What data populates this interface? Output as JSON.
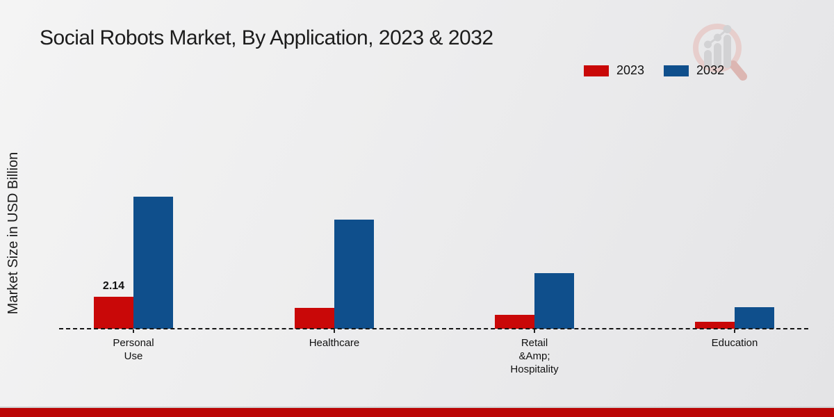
{
  "title": "Social Robots Market, By Application, 2023 & 2032",
  "y_axis_label": "Market Size in USD Billion",
  "legend": [
    {
      "label": "2023",
      "color": "#c90808"
    },
    {
      "label": "2032",
      "color": "#0f4f8c"
    }
  ],
  "chart_data": {
    "type": "bar",
    "title": "Social Robots Market, By Application, 2023 & 2032",
    "xlabel": "",
    "ylabel": "Market Size in USD Billion",
    "categories": [
      "Personal Use",
      "Healthcare",
      "Retail &Amp; Hospitality",
      "Education"
    ],
    "category_lines": [
      [
        "Personal",
        "Use"
      ],
      [
        "Healthcare"
      ],
      [
        "Retail",
        "&Amp;",
        "Hospitality"
      ],
      [
        "Education"
      ]
    ],
    "series": [
      {
        "name": "2023",
        "color": "#c90808",
        "values": [
          2.14,
          1.4,
          0.93,
          0.48
        ],
        "value_labels": [
          "2.14",
          "",
          "",
          ""
        ]
      },
      {
        "name": "2032",
        "color": "#0f4f8c",
        "values": [
          8.84,
          7.28,
          3.7,
          1.42
        ],
        "value_labels": [
          "",
          "",
          "",
          ""
        ]
      }
    ],
    "ylim": [
      0,
      10
    ],
    "grid": false,
    "legend_position": "top-right",
    "x_axis_style": "dashed-baseline",
    "y_axis_ticks_visible": false
  },
  "branding": {
    "logo_icon": "magnifier-growth-chart-watermark",
    "ring_color": "#e7cecc",
    "glyph_color": "#d2d2d4"
  },
  "footer": {
    "divider_color": "#cfcfcf",
    "band_color": "#bb0606"
  },
  "colors": {
    "background": "#ededee",
    "baseline": "#141414",
    "text": "#1c1c1c"
  }
}
